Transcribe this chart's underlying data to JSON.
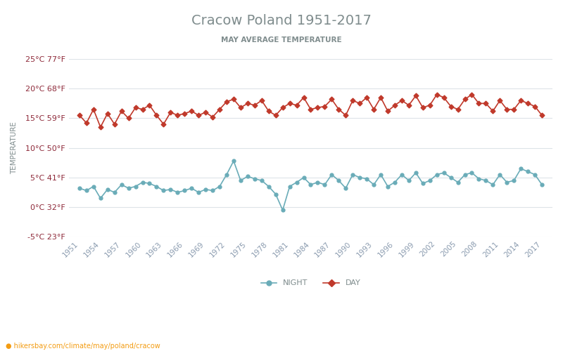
{
  "title": "Cracow Poland 1951-2017",
  "subtitle": "MAY AVERAGE TEMPERATURE",
  "ylabel": "TEMPERATURE",
  "xlabel_url": "hikersbay.com/climate/may/poland/cracow",
  "years": [
    1951,
    1952,
    1953,
    1954,
    1955,
    1956,
    1957,
    1958,
    1959,
    1960,
    1961,
    1962,
    1963,
    1964,
    1965,
    1966,
    1967,
    1968,
    1969,
    1970,
    1971,
    1972,
    1973,
    1974,
    1975,
    1976,
    1977,
    1978,
    1979,
    1980,
    1981,
    1982,
    1983,
    1984,
    1985,
    1986,
    1987,
    1988,
    1989,
    1990,
    1991,
    1992,
    1993,
    1994,
    1995,
    1996,
    1997,
    1998,
    1999,
    2000,
    2001,
    2002,
    2003,
    2004,
    2005,
    2006,
    2007,
    2008,
    2009,
    2010,
    2011,
    2012,
    2013,
    2014,
    2015,
    2016,
    2017
  ],
  "day_temps": [
    15.5,
    14.2,
    16.5,
    13.5,
    15.8,
    14.0,
    16.2,
    15.0,
    16.8,
    16.5,
    17.2,
    15.5,
    14.0,
    16.0,
    15.5,
    15.8,
    16.2,
    15.5,
    16.0,
    15.2,
    16.5,
    17.8,
    18.2,
    16.8,
    17.5,
    17.2,
    18.0,
    16.2,
    15.5,
    16.8,
    17.5,
    17.2,
    18.5,
    16.5,
    16.8,
    17.0,
    18.2,
    16.5,
    15.5,
    18.0,
    17.5,
    18.5,
    16.5,
    18.5,
    16.2,
    17.2,
    18.0,
    17.2,
    18.8,
    16.8,
    17.2,
    19.0,
    18.5,
    17.0,
    16.5,
    18.2,
    19.0,
    17.5,
    17.5,
    16.2,
    18.0,
    16.5,
    16.5,
    18.0,
    17.5,
    17.0,
    15.5
  ],
  "night_temps": [
    3.2,
    2.8,
    3.5,
    1.5,
    3.0,
    2.5,
    3.8,
    3.2,
    3.5,
    4.2,
    4.0,
    3.5,
    2.8,
    3.0,
    2.5,
    2.8,
    3.2,
    2.5,
    3.0,
    2.8,
    3.5,
    5.5,
    7.8,
    4.5,
    5.2,
    4.8,
    4.5,
    3.5,
    2.2,
    -0.5,
    3.5,
    4.2,
    5.0,
    3.8,
    4.2,
    3.8,
    5.5,
    4.5,
    3.2,
    5.5,
    5.0,
    4.8,
    3.8,
    5.5,
    3.5,
    4.2,
    5.5,
    4.5,
    5.8,
    4.0,
    4.5,
    5.5,
    5.8,
    5.0,
    4.2,
    5.5,
    5.8,
    4.8,
    4.5,
    3.8,
    5.5,
    4.2,
    4.5,
    6.5,
    6.0,
    5.5,
    3.8
  ],
  "day_color": "#c0392b",
  "night_color": "#6aacb8",
  "title_color": "#7f8c8d",
  "subtitle_color": "#7f8c8d",
  "axis_label_color": "#7f8c8d",
  "tick_label_color": "#8e2a3a",
  "grid_color": "#dde3e8",
  "ylim": [
    -5,
    25
  ],
  "yticks_c": [
    -5,
    0,
    5,
    10,
    15,
    20,
    25
  ],
  "yticks_f": [
    23,
    32,
    41,
    50,
    59,
    68,
    77
  ],
  "background_color": "#ffffff",
  "legend_night": "NIGHT",
  "legend_day": "DAY",
  "url_color": "#f39c12",
  "xtick_color": "#8a9baf"
}
